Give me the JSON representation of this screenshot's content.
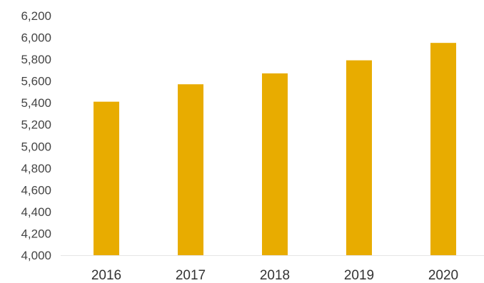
{
  "chart_data": {
    "type": "bar",
    "categories": [
      "2016",
      "2017",
      "2018",
      "2019",
      "2020"
    ],
    "values": [
      5410,
      5570,
      5670,
      5790,
      5950
    ],
    "title": "",
    "xlabel": "",
    "ylabel": "",
    "ylim": [
      4000,
      6200
    ],
    "yticks": [
      4000,
      4200,
      4400,
      4600,
      4800,
      5000,
      5200,
      5400,
      5600,
      5800,
      6000,
      6200
    ],
    "ytick_labels": [
      "4,000",
      "4,200",
      "4,400",
      "4,600",
      "4,800",
      "5,000",
      "5,200",
      "5,400",
      "5,600",
      "5,800",
      "6,000",
      "6,200"
    ],
    "grid": false,
    "legend": "none",
    "bar_color": "#E8AC00",
    "axis_color": "#E6E6E6"
  }
}
